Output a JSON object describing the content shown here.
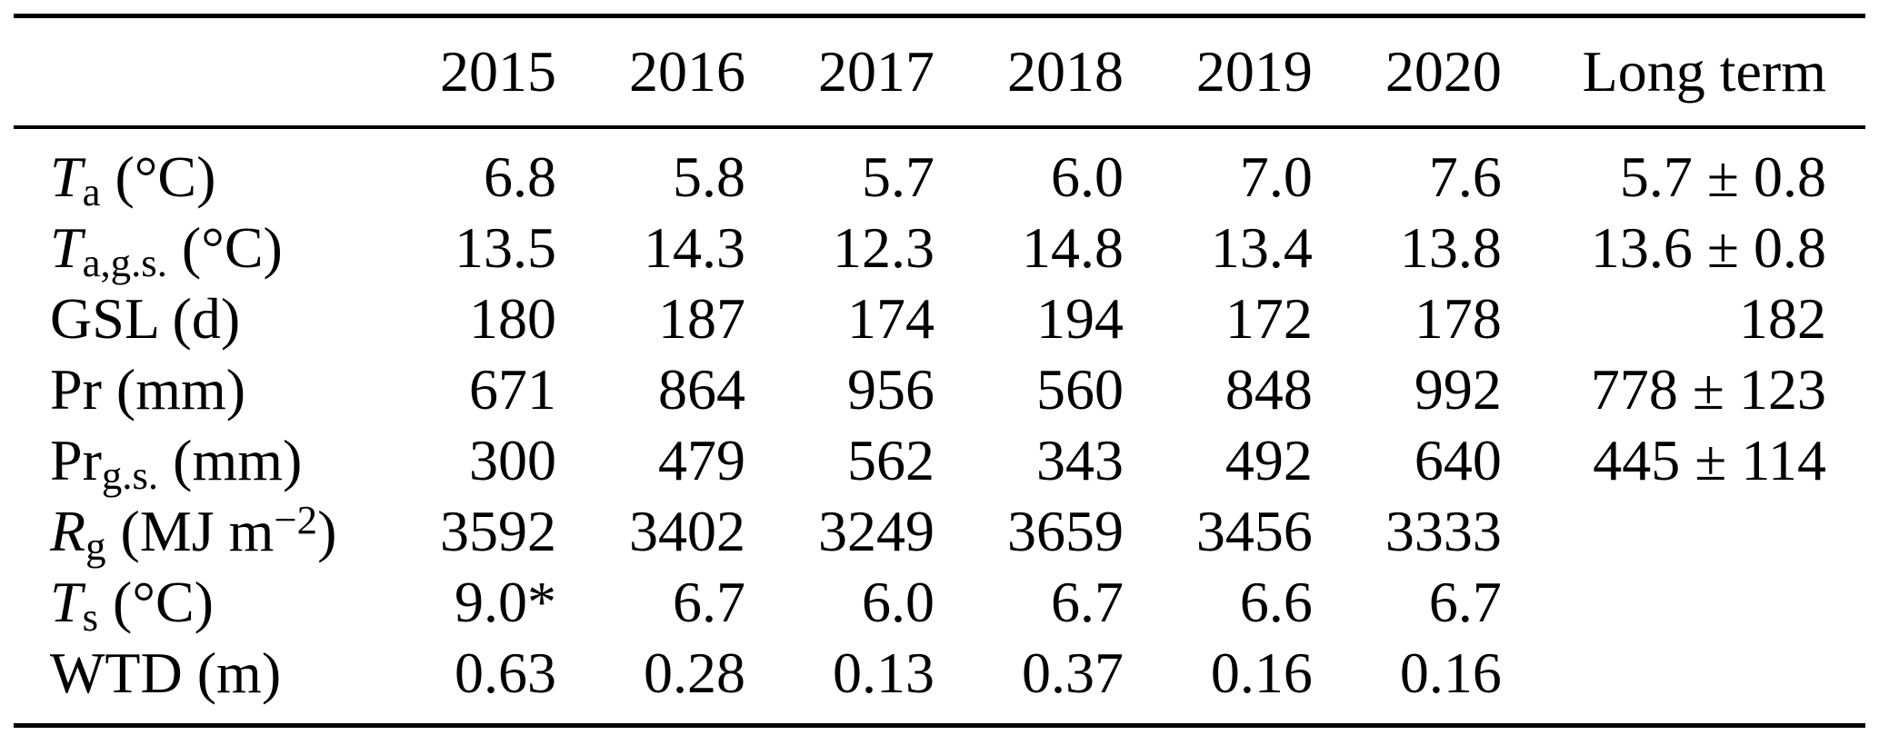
{
  "colors": {
    "background": "#ffffff",
    "text": "#000000",
    "rule": "#000000"
  },
  "table": {
    "description": "annual-site-meteorology-table",
    "header": {
      "corner": "",
      "columns": [
        {
          "key": "2015",
          "label": "2015"
        },
        {
          "key": "2016",
          "label": "2016"
        },
        {
          "key": "2017",
          "label": "2017"
        },
        {
          "key": "2018",
          "label": "2018"
        },
        {
          "key": "2019",
          "label": "2019"
        },
        {
          "key": "2020",
          "label": "2020"
        },
        {
          "key": "long-term",
          "label": "Long term"
        }
      ]
    },
    "rows": [
      {
        "key": "ta",
        "label_plain": "Ta (°C)",
        "label_parts": [
          {
            "t": "T",
            "s": "i"
          },
          {
            "t": "a",
            "s": "sub"
          },
          {
            "t": " (°C)",
            "s": "n"
          }
        ],
        "values": [
          "6.8",
          "5.8",
          "5.7",
          "6.0",
          "7.0",
          "7.6",
          "5.7 ± 0.8"
        ]
      },
      {
        "key": "ta-gs",
        "label_plain": "Ta,g.s. (°C)",
        "label_parts": [
          {
            "t": "T",
            "s": "i"
          },
          {
            "t": "a,g.s.",
            "s": "sub"
          },
          {
            "t": " (°C)",
            "s": "n"
          }
        ],
        "values": [
          "13.5",
          "14.3",
          "12.3",
          "14.8",
          "13.4",
          "13.8",
          "13.6 ± 0.8"
        ]
      },
      {
        "key": "gsl",
        "label_plain": "GSL (d)",
        "label_parts": [
          {
            "t": "GSL (d)",
            "s": "n"
          }
        ],
        "values": [
          "180",
          "187",
          "174",
          "194",
          "172",
          "178",
          "182"
        ]
      },
      {
        "key": "pr",
        "label_plain": "Pr (mm)",
        "label_parts": [
          {
            "t": "Pr (mm)",
            "s": "n"
          }
        ],
        "values": [
          "671",
          "864",
          "956",
          "560",
          "848",
          "992",
          "778 ± 123"
        ]
      },
      {
        "key": "pr-gs",
        "label_plain": "Prg.s. (mm)",
        "label_parts": [
          {
            "t": "Pr",
            "s": "n"
          },
          {
            "t": "g.s.",
            "s": "sub"
          },
          {
            "t": " (mm)",
            "s": "n"
          }
        ],
        "values": [
          "300",
          "479",
          "562",
          "343",
          "492",
          "640",
          "445 ± 114"
        ]
      },
      {
        "key": "rg",
        "label_plain": "Rg (MJ m−2)",
        "label_parts": [
          {
            "t": "R",
            "s": "i"
          },
          {
            "t": "g",
            "s": "sub"
          },
          {
            "t": " (MJ m",
            "s": "n"
          },
          {
            "t": "−2",
            "s": "sup"
          },
          {
            "t": ")",
            "s": "n"
          }
        ],
        "values": [
          "3592",
          "3402",
          "3249",
          "3659",
          "3456",
          "3333",
          ""
        ]
      },
      {
        "key": "ts",
        "label_plain": "Ts (°C)",
        "label_parts": [
          {
            "t": "T",
            "s": "i"
          },
          {
            "t": "s",
            "s": "sub"
          },
          {
            "t": " (°C)",
            "s": "n"
          }
        ],
        "values": [
          "9.0*",
          "6.7",
          "6.0",
          "6.7",
          "6.6",
          "6.7",
          ""
        ]
      },
      {
        "key": "wtd",
        "label_plain": "WTD (m)",
        "label_parts": [
          {
            "t": "WTD (m)",
            "s": "n"
          }
        ],
        "values": [
          "0.63",
          "0.28",
          "0.13",
          "0.37",
          "0.16",
          "0.16",
          ""
        ]
      }
    ]
  }
}
